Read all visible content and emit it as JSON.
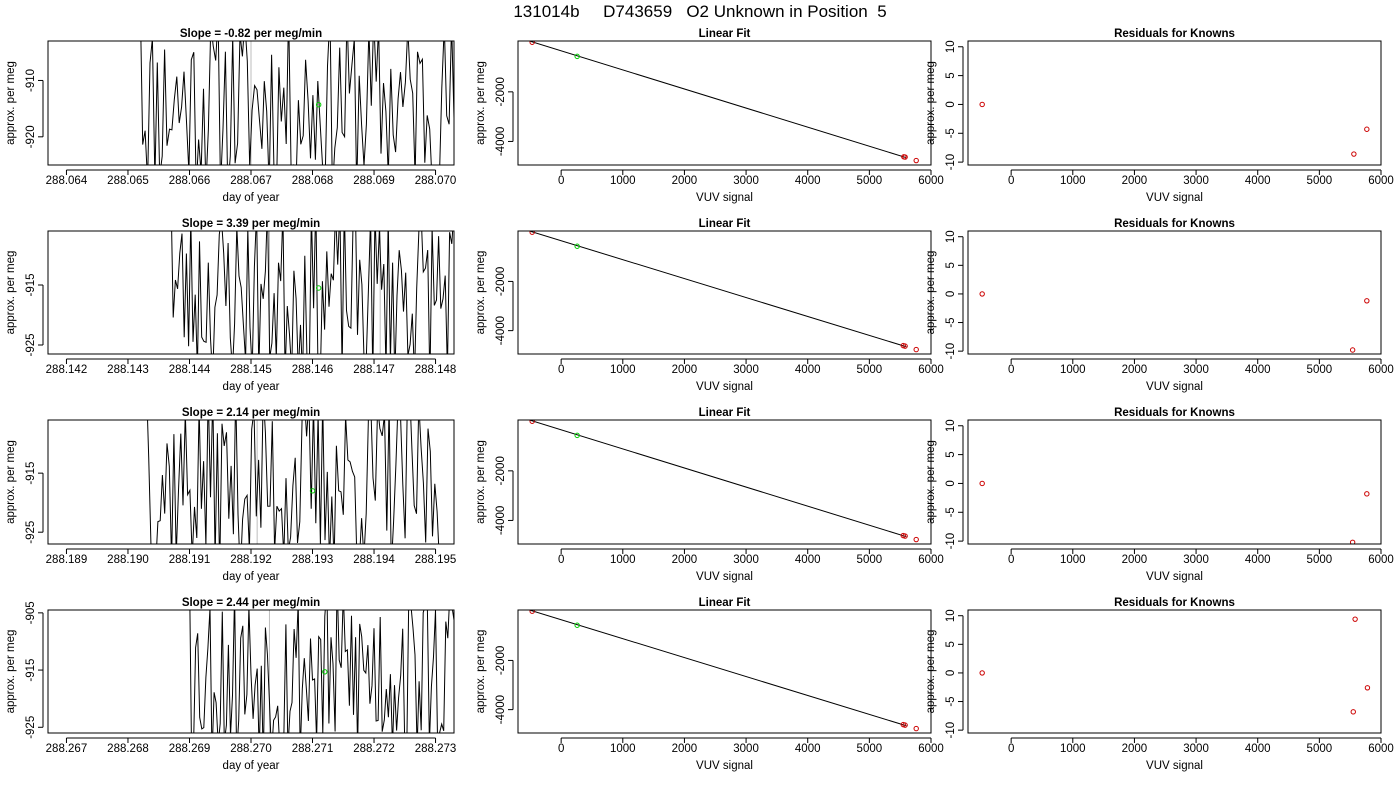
{
  "figure": {
    "title": "131014b     D743659   O2 Unknown in Position  5",
    "colors": {
      "trace": "#000000",
      "unknown_point": "#00cc00",
      "known_point": "#cc0000",
      "vline": "#bdbdbd"
    }
  },
  "chart_data": [
    {
      "type": "line",
      "row": 0,
      "col": 0,
      "title": "Slope =  -0.82  per meg/min",
      "xlabel": "day of year",
      "ylabel": "approx. per meg",
      "xlim": [
        288.0637,
        288.0703
      ],
      "ylim": [
        -925,
        -903
      ],
      "xticks": [
        "288.064",
        "288.065",
        "288.066",
        "288.067",
        "288.068",
        "288.069",
        "288.070"
      ],
      "xtick_values": [
        288.064,
        288.065,
        288.066,
        288.067,
        288.068,
        288.069,
        288.07
      ],
      "yticks": [
        "-910",
        "-920"
      ],
      "ytick_values": [
        -910,
        -920
      ],
      "trace_seed": 11,
      "trace_start": 288.0652,
      "trace_end": 288.0703,
      "vlines": [
        288.067
      ],
      "unknown_point": [
        288.0681,
        -914.3
      ]
    },
    {
      "type": "scatter",
      "row": 0,
      "col": 1,
      "title": "Linear Fit",
      "xlabel": "VUV signal",
      "ylabel": "approx. per meg",
      "xlim": [
        -700,
        6000
      ],
      "ylim": [
        -4950,
        50
      ],
      "xticks": [
        "0",
        "1000",
        "2000",
        "3000",
        "4000",
        "5000",
        "6000"
      ],
      "xtick_values": [
        0,
        1000,
        2000,
        3000,
        4000,
        5000,
        6000
      ],
      "yticks": [
        "-2000",
        "-4000"
      ],
      "ytick_values": [
        -2000,
        -4000
      ],
      "fit_line": [
        [
          -700,
          193
        ],
        [
          5600,
          -4655
        ]
      ],
      "known_points": [
        [
          -470,
          0
        ],
        [
          5560,
          -4620
        ],
        [
          5580,
          -4630
        ],
        [
          5760,
          -4770
        ]
      ],
      "unknown_point": [
        260,
        -570
      ]
    },
    {
      "type": "scatter",
      "row": 0,
      "col": 2,
      "title": "Residuals for Knowns",
      "xlabel": "VUV signal",
      "ylabel": "approx. per meg",
      "xlim": [
        -700,
        6000
      ],
      "ylim": [
        -10.5,
        11
      ],
      "xticks": [
        "0",
        "1000",
        "2000",
        "3000",
        "4000",
        "5000",
        "6000"
      ],
      "xtick_values": [
        0,
        1000,
        2000,
        3000,
        4000,
        5000,
        6000
      ],
      "yticks": [
        "10",
        "5",
        "0",
        "-5",
        "-10"
      ],
      "ytick_values": [
        10,
        5,
        0,
        -5,
        -10
      ],
      "known_points": [
        [
          -470,
          0
        ],
        [
          5560,
          -8.6
        ],
        [
          5770,
          -4.3
        ]
      ]
    },
    {
      "type": "line",
      "row": 1,
      "col": 0,
      "title": "Slope =  3.39  per meg/min",
      "xlabel": "day of year",
      "ylabel": "approx. per meg",
      "xlim": [
        288.1417,
        288.1483
      ],
      "ylim": [
        -926.5,
        -906
      ],
      "xticks": [
        "288.142",
        "288.143",
        "288.144",
        "288.145",
        "288.146",
        "288.147",
        "288.148"
      ],
      "xtick_values": [
        288.142,
        288.143,
        288.144,
        288.145,
        288.146,
        288.147,
        288.148
      ],
      "yticks": [
        "-915",
        "-925"
      ],
      "ytick_values": [
        -915,
        -925
      ],
      "trace_seed": 23,
      "trace_start": 288.1437,
      "trace_end": 288.1483,
      "vlines": [
        288.1453,
        288.1471
      ],
      "unknown_point": [
        288.1461,
        -915.5
      ]
    },
    {
      "type": "scatter",
      "row": 1,
      "col": 1,
      "title": "Linear Fit",
      "xlabel": "VUV signal",
      "ylabel": "approx. per meg",
      "xlim": [
        -700,
        6000
      ],
      "ylim": [
        -4950,
        50
      ],
      "xticks": [
        "0",
        "1000",
        "2000",
        "3000",
        "4000",
        "5000",
        "6000"
      ],
      "xtick_values": [
        0,
        1000,
        2000,
        3000,
        4000,
        5000,
        6000
      ],
      "yticks": [
        "-2000",
        "-4000"
      ],
      "ytick_values": [
        -2000,
        -4000
      ],
      "fit_line": [
        [
          -700,
          193
        ],
        [
          5600,
          -4655
        ]
      ],
      "known_points": [
        [
          -470,
          0
        ],
        [
          5550,
          -4610
        ],
        [
          5580,
          -4630
        ],
        [
          5760,
          -4770
        ]
      ],
      "unknown_point": [
        260,
        -570
      ]
    },
    {
      "type": "scatter",
      "row": 1,
      "col": 2,
      "title": "Residuals for Knowns",
      "xlabel": "VUV signal",
      "ylabel": "approx. per meg",
      "xlim": [
        -700,
        6000
      ],
      "ylim": [
        -10.5,
        11
      ],
      "xticks": [
        "0",
        "1000",
        "2000",
        "3000",
        "4000",
        "5000",
        "6000"
      ],
      "xtick_values": [
        0,
        1000,
        2000,
        3000,
        4000,
        5000,
        6000
      ],
      "yticks": [
        "10",
        "5",
        "0",
        "-5",
        "-10"
      ],
      "ytick_values": [
        10,
        5,
        0,
        -5,
        -10
      ],
      "known_points": [
        [
          -470,
          0
        ],
        [
          5540,
          -9.8
        ],
        [
          5770,
          -1.2
        ]
      ]
    },
    {
      "type": "line",
      "row": 2,
      "col": 0,
      "title": "Slope =  2.14  per meg/min",
      "xlabel": "day of year",
      "ylabel": "approx. per meg",
      "xlim": [
        288.1887,
        288.1953
      ],
      "ylim": [
        -927,
        -906
      ],
      "xticks": [
        "288.189",
        "288.190",
        "288.191",
        "288.192",
        "288.193",
        "288.194",
        "288.195"
      ],
      "xtick_values": [
        288.189,
        288.19,
        288.191,
        288.192,
        288.193,
        288.194,
        288.195
      ],
      "yticks": [
        "-915",
        "-925"
      ],
      "ytick_values": [
        -915,
        -925
      ],
      "trace_seed": 37,
      "trace_start": 288.1903,
      "trace_end": 288.1951,
      "vlines": [
        288.1921
      ],
      "unknown_point": [
        288.193,
        -918.0
      ]
    },
    {
      "type": "scatter",
      "row": 2,
      "col": 1,
      "title": "Linear Fit",
      "xlabel": "VUV signal",
      "ylabel": "approx. per meg",
      "xlim": [
        -700,
        6000
      ],
      "ylim": [
        -4950,
        50
      ],
      "xticks": [
        "0",
        "1000",
        "2000",
        "3000",
        "4000",
        "5000",
        "6000"
      ],
      "xtick_values": [
        0,
        1000,
        2000,
        3000,
        4000,
        5000,
        6000
      ],
      "yticks": [
        "-2000",
        "-4000"
      ],
      "ytick_values": [
        -2000,
        -4000
      ],
      "fit_line": [
        [
          -700,
          193
        ],
        [
          5600,
          -4655
        ]
      ],
      "known_points": [
        [
          -470,
          0
        ],
        [
          5550,
          -4610
        ],
        [
          5580,
          -4630
        ],
        [
          5760,
          -4770
        ]
      ],
      "unknown_point": [
        260,
        -570
      ]
    },
    {
      "type": "scatter",
      "row": 2,
      "col": 2,
      "title": "Residuals for Knowns",
      "xlabel": "VUV signal",
      "ylabel": "approx. per meg",
      "xlim": [
        -700,
        6000
      ],
      "ylim": [
        -10.5,
        11
      ],
      "xticks": [
        "0",
        "1000",
        "2000",
        "3000",
        "4000",
        "5000",
        "6000"
      ],
      "xtick_values": [
        0,
        1000,
        2000,
        3000,
        4000,
        5000,
        6000
      ],
      "yticks": [
        "10",
        "5",
        "0",
        "-5",
        "-10"
      ],
      "ytick_values": [
        10,
        5,
        0,
        -5,
        -10
      ],
      "known_points": [
        [
          -470,
          0
        ],
        [
          5540,
          -10.2
        ],
        [
          5770,
          -1.8
        ]
      ]
    },
    {
      "type": "line",
      "row": 3,
      "col": 0,
      "title": "Slope =  2.44  per meg/min",
      "xlabel": "day of year",
      "ylabel": "approx. per meg",
      "xlim": [
        288.2667,
        288.2733
      ],
      "ylim": [
        -926,
        -904.5
      ],
      "xticks": [
        "288.267",
        "288.268",
        "288.269",
        "288.270",
        "288.271",
        "288.272",
        "288.273"
      ],
      "xtick_values": [
        288.267,
        288.268,
        288.269,
        288.27,
        288.271,
        288.272,
        288.273
      ],
      "yticks": [
        "-905",
        "-915",
        "-925"
      ],
      "ytick_values": [
        -905,
        -915,
        -925
      ],
      "trace_seed": 53,
      "trace_start": 288.269,
      "trace_end": 288.2733,
      "vlines": [
        288.2703
      ],
      "unknown_point": [
        288.2712,
        -915.3
      ]
    },
    {
      "type": "scatter",
      "row": 3,
      "col": 1,
      "title": "Linear Fit",
      "xlabel": "VUV signal",
      "ylabel": "approx. per meg",
      "xlim": [
        -700,
        6000
      ],
      "ylim": [
        -4950,
        50
      ],
      "xticks": [
        "0",
        "1000",
        "2000",
        "3000",
        "4000",
        "5000",
        "6000"
      ],
      "xtick_values": [
        0,
        1000,
        2000,
        3000,
        4000,
        5000,
        6000
      ],
      "yticks": [
        "-2000",
        "-4000"
      ],
      "ytick_values": [
        -2000,
        -4000
      ],
      "fit_line": [
        [
          -700,
          193
        ],
        [
          5600,
          -4655
        ]
      ],
      "known_points": [
        [
          -470,
          0
        ],
        [
          5550,
          -4610
        ],
        [
          5580,
          -4630
        ],
        [
          5760,
          -4770
        ]
      ],
      "unknown_point": [
        260,
        -570
      ]
    },
    {
      "type": "scatter",
      "row": 3,
      "col": 2,
      "title": "Residuals for Knowns",
      "xlabel": "VUV signal",
      "ylabel": "approx. per meg",
      "xlim": [
        -700,
        6000
      ],
      "ylim": [
        -10.5,
        11
      ],
      "xticks": [
        "0",
        "1000",
        "2000",
        "3000",
        "4000",
        "5000",
        "6000"
      ],
      "xtick_values": [
        0,
        1000,
        2000,
        3000,
        4000,
        5000,
        6000
      ],
      "yticks": [
        "10",
        "5",
        "0",
        "-5",
        "-10"
      ],
      "ytick_values": [
        10,
        5,
        0,
        -5,
        -10
      ],
      "known_points": [
        [
          -470,
          0
        ],
        [
          5580,
          9.4
        ],
        [
          5550,
          -6.8
        ],
        [
          5780,
          -2.6
        ]
      ]
    }
  ]
}
